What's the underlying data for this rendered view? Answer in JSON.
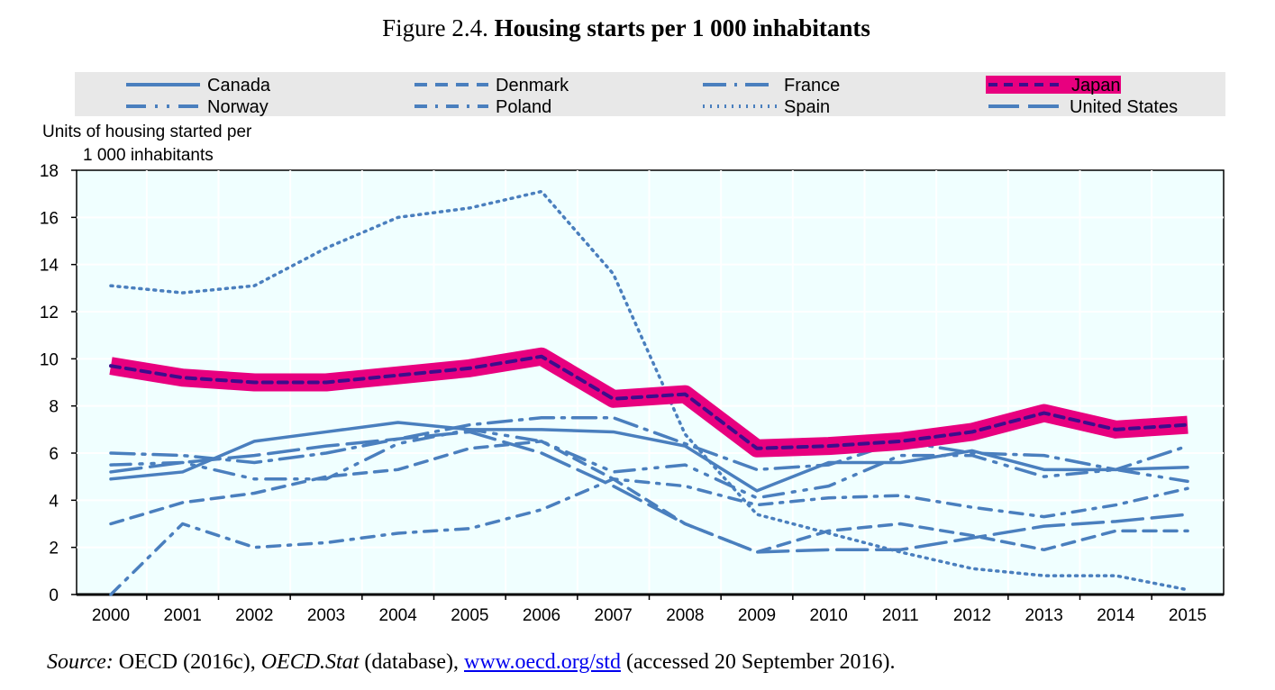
{
  "figure_label": "Figure 2.4.",
  "title": "Housing starts per 1 000 inhabitants",
  "source": {
    "label": "Source:",
    "text1": " OECD (2016c), ",
    "db": "OECD.Stat",
    "text2": " (database), ",
    "link": "www.oecd.org/std",
    "text3": " (accessed 20 September 2016)."
  },
  "chart_data": {
    "type": "line",
    "ylabel_line1": "Units of housing started per",
    "ylabel_line2": "1 000 inhabitants",
    "ylim": [
      0,
      18
    ],
    "yticks": [
      0,
      2,
      4,
      6,
      8,
      10,
      12,
      14,
      16,
      18
    ],
    "x": [
      "2000",
      "2001",
      "2002",
      "2003",
      "2004",
      "2005",
      "2006",
      "2007",
      "2008",
      "2009",
      "2010",
      "2011",
      "2012",
      "2013",
      "2014",
      "2015"
    ],
    "grid": true,
    "legend_placement": "top",
    "plot_background": "#f0ffff",
    "series": [
      {
        "name": "Canada",
        "style": "solid",
        "color": "#4a7fbe",
        "values": [
          4.9,
          5.2,
          6.5,
          6.9,
          7.3,
          7.0,
          7.0,
          6.9,
          6.3,
          4.4,
          5.6,
          5.6,
          6.1,
          5.3,
          5.3,
          5.4
        ]
      },
      {
        "name": "Denmark",
        "style": "dashed",
        "color": "#4a7fbe",
        "values": [
          3.0,
          3.9,
          4.3,
          5.0,
          5.3,
          6.2,
          6.5,
          4.9,
          3.0,
          1.8,
          2.7,
          3.0,
          2.5,
          1.9,
          2.7,
          2.7
        ]
      },
      {
        "name": "France",
        "style": "longdash-dot",
        "color": "#4a7fbe",
        "values": [
          6.0,
          5.9,
          5.6,
          6.0,
          6.6,
          7.2,
          7.5,
          7.5,
          6.4,
          5.3,
          5.5,
          6.5,
          6.0,
          5.9,
          5.3,
          6.3
        ]
      },
      {
        "name": "Japan",
        "style": "highlight-dashed",
        "color": "#3d0d8c",
        "highlight": "#e8007f",
        "values": [
          9.7,
          9.2,
          9.0,
          9.0,
          9.3,
          9.6,
          10.1,
          8.3,
          8.5,
          6.2,
          6.3,
          6.5,
          6.9,
          7.7,
          7.0,
          7.2
        ]
      },
      {
        "name": "Norway",
        "style": "dash-dot-dot",
        "color": "#4a7fbe",
        "values": [
          5.5,
          5.6,
          4.9,
          4.9,
          6.4,
          7.0,
          6.5,
          5.2,
          5.5,
          4.1,
          4.6,
          5.9,
          5.9,
          5.0,
          5.3,
          4.8
        ]
      },
      {
        "name": "Poland",
        "style": "dash-dot",
        "color": "#4a7fbe",
        "values": [
          0.0,
          3.0,
          2.0,
          2.2,
          2.6,
          2.8,
          3.6,
          4.9,
          4.6,
          3.8,
          4.1,
          4.2,
          3.7,
          3.3,
          3.8,
          4.5
        ]
      },
      {
        "name": "Spain",
        "style": "dotted",
        "color": "#4a7fbe",
        "values": [
          13.1,
          12.8,
          13.1,
          14.7,
          16.0,
          16.4,
          17.1,
          13.6,
          6.8,
          3.4,
          2.6,
          1.8,
          1.1,
          0.8,
          0.8,
          0.2
        ]
      },
      {
        "name": "United States",
        "style": "longdash",
        "color": "#4a7fbe",
        "values": [
          5.2,
          5.6,
          5.9,
          6.3,
          6.6,
          6.9,
          6.0,
          4.6,
          3.0,
          1.8,
          1.9,
          1.9,
          2.4,
          2.9,
          3.1,
          3.4
        ]
      }
    ]
  }
}
